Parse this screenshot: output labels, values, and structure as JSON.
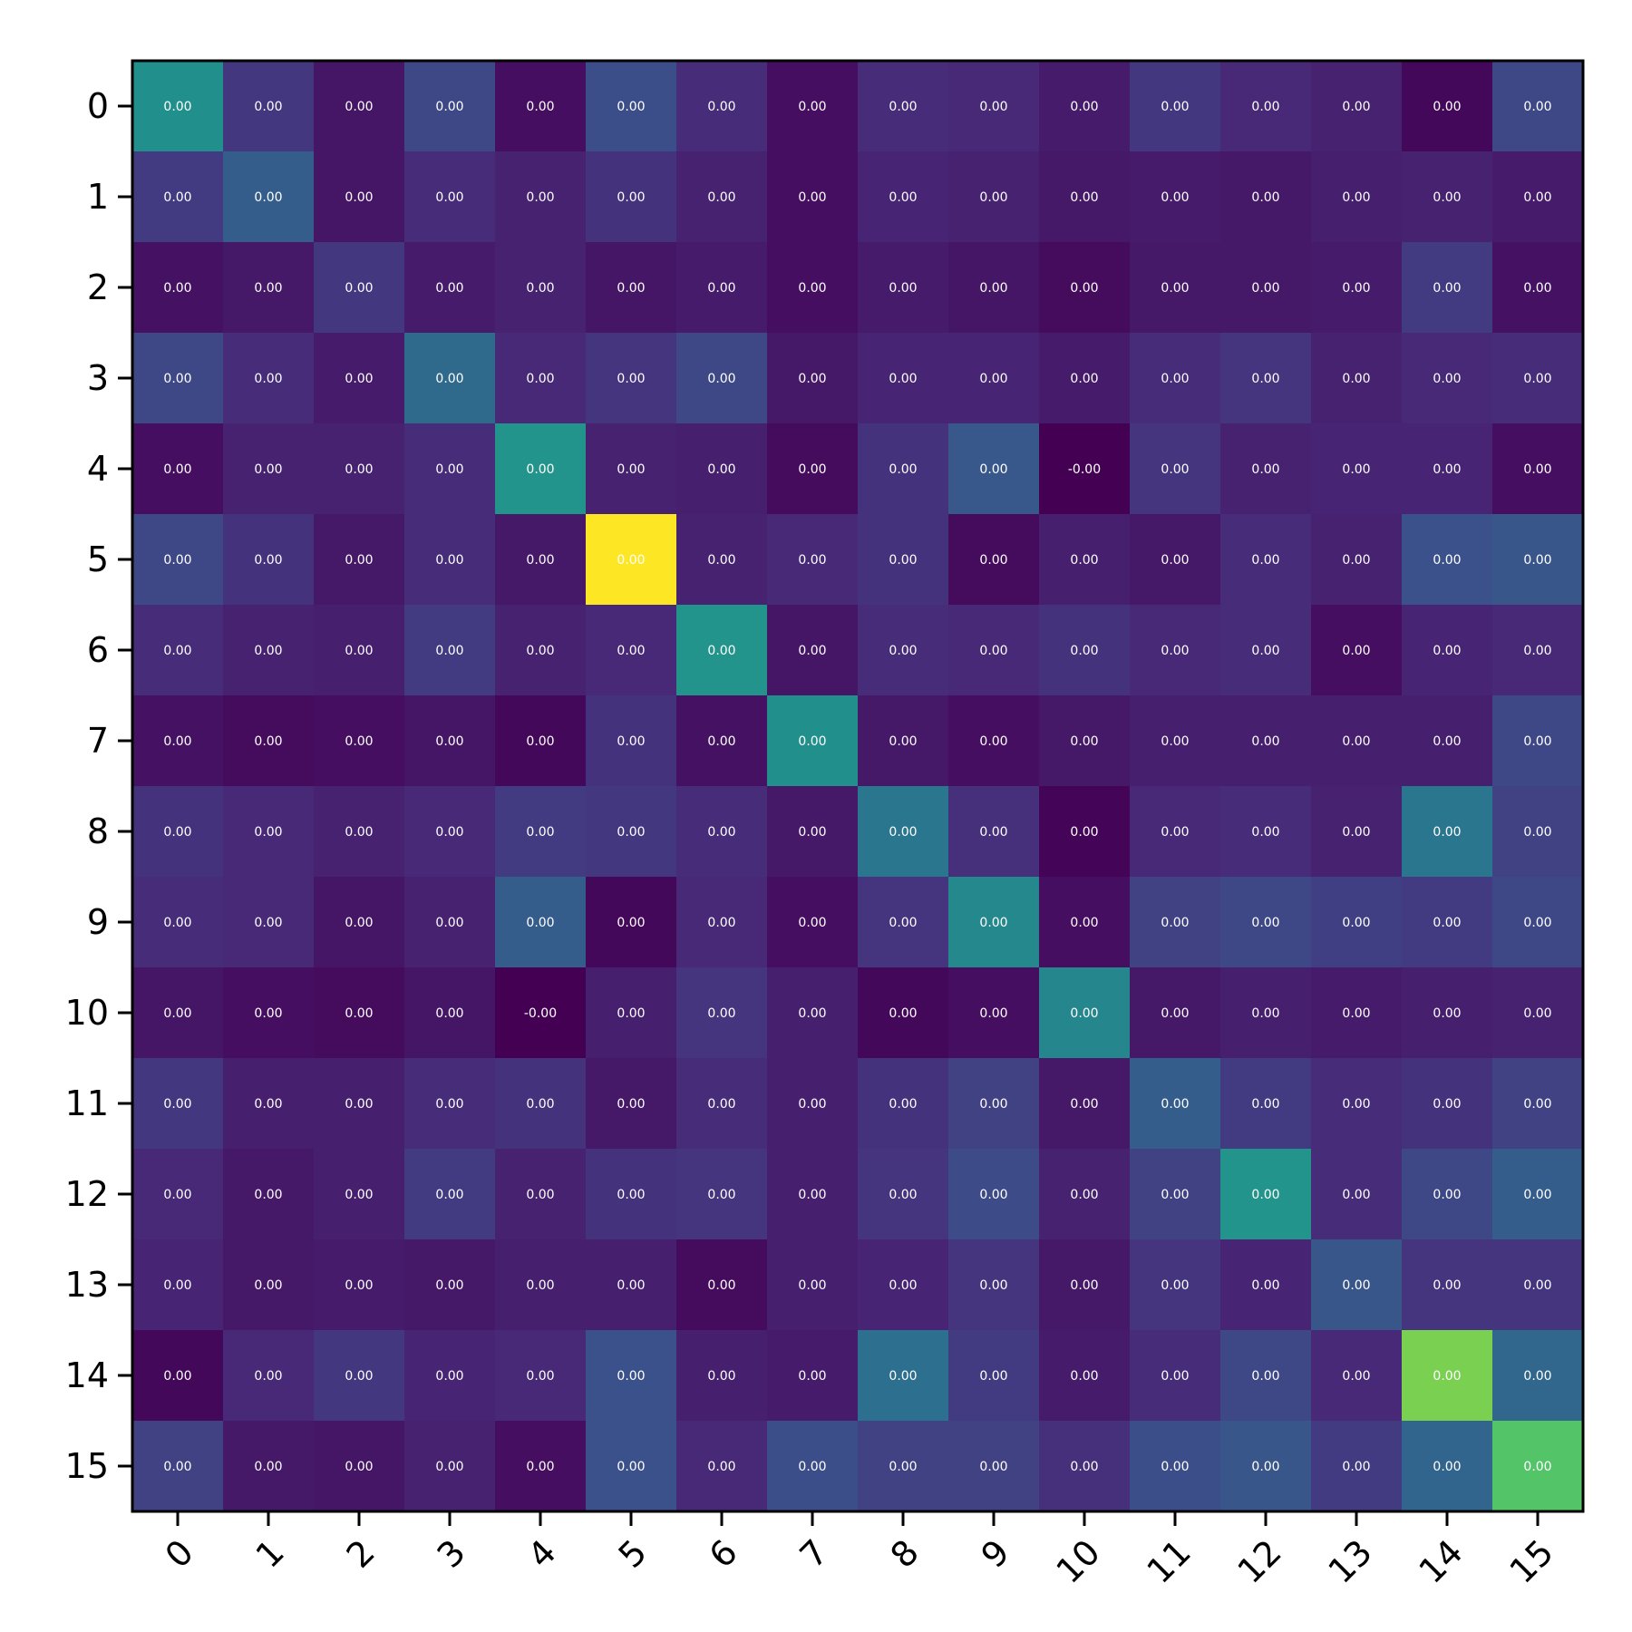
{
  "chart_data": {
    "type": "heatmap",
    "title": "",
    "xlabel": "",
    "ylabel": "",
    "x_tick_labels": [
      "0",
      "1",
      "2",
      "3",
      "4",
      "5",
      "6",
      "7",
      "8",
      "9",
      "10",
      "11",
      "12",
      "13",
      "14",
      "15"
    ],
    "y_tick_labels": [
      "0",
      "1",
      "2",
      "3",
      "4",
      "5",
      "6",
      "7",
      "8",
      "9",
      "10",
      "11",
      "12",
      "13",
      "14",
      "15"
    ],
    "colormap": "viridis",
    "grid": false,
    "x_tick_rotation_deg": 45,
    "color_level_note": "cell_color_levels are estimated relative color intensities (0-1) read from cell colors",
    "cell_color_levels": [
      [
        0.5,
        0.17,
        0.06,
        0.22,
        0.04,
        0.24,
        0.13,
        0.04,
        0.13,
        0.12,
        0.08,
        0.17,
        0.12,
        0.1,
        0.02,
        0.22
      ],
      [
        0.18,
        0.3,
        0.06,
        0.13,
        0.1,
        0.15,
        0.1,
        0.04,
        0.11,
        0.1,
        0.07,
        0.08,
        0.07,
        0.09,
        0.1,
        0.08
      ],
      [
        0.05,
        0.07,
        0.17,
        0.08,
        0.1,
        0.06,
        0.08,
        0.04,
        0.08,
        0.06,
        0.03,
        0.07,
        0.07,
        0.08,
        0.18,
        0.05
      ],
      [
        0.22,
        0.13,
        0.08,
        0.35,
        0.12,
        0.16,
        0.22,
        0.07,
        0.11,
        0.11,
        0.08,
        0.13,
        0.16,
        0.1,
        0.12,
        0.13
      ],
      [
        0.04,
        0.1,
        0.1,
        0.13,
        0.52,
        0.1,
        0.09,
        0.03,
        0.15,
        0.28,
        0.0,
        0.16,
        0.1,
        0.11,
        0.11,
        0.04
      ],
      [
        0.22,
        0.15,
        0.07,
        0.13,
        0.07,
        1.0,
        0.1,
        0.12,
        0.15,
        0.03,
        0.09,
        0.07,
        0.13,
        0.1,
        0.25,
        0.27
      ],
      [
        0.13,
        0.1,
        0.09,
        0.18,
        0.1,
        0.12,
        0.52,
        0.06,
        0.13,
        0.12,
        0.15,
        0.12,
        0.13,
        0.04,
        0.11,
        0.12
      ],
      [
        0.05,
        0.03,
        0.04,
        0.06,
        0.02,
        0.15,
        0.05,
        0.5,
        0.07,
        0.04,
        0.07,
        0.09,
        0.09,
        0.09,
        0.09,
        0.22
      ],
      [
        0.15,
        0.12,
        0.1,
        0.12,
        0.18,
        0.17,
        0.13,
        0.07,
        0.4,
        0.14,
        0.01,
        0.12,
        0.13,
        0.1,
        0.4,
        0.2
      ],
      [
        0.13,
        0.12,
        0.06,
        0.1,
        0.3,
        0.02,
        0.12,
        0.04,
        0.16,
        0.47,
        0.04,
        0.2,
        0.22,
        0.19,
        0.18,
        0.22
      ],
      [
        0.06,
        0.04,
        0.03,
        0.06,
        0.0,
        0.09,
        0.16,
        0.09,
        0.02,
        0.04,
        0.46,
        0.07,
        0.09,
        0.08,
        0.09,
        0.1
      ],
      [
        0.17,
        0.09,
        0.09,
        0.13,
        0.15,
        0.07,
        0.13,
        0.09,
        0.15,
        0.2,
        0.07,
        0.3,
        0.18,
        0.13,
        0.15,
        0.2
      ],
      [
        0.12,
        0.07,
        0.09,
        0.18,
        0.1,
        0.15,
        0.16,
        0.09,
        0.16,
        0.23,
        0.1,
        0.2,
        0.52,
        0.13,
        0.22,
        0.3
      ],
      [
        0.11,
        0.07,
        0.08,
        0.07,
        0.09,
        0.09,
        0.03,
        0.09,
        0.11,
        0.16,
        0.07,
        0.16,
        0.11,
        0.27,
        0.16,
        0.16
      ],
      [
        0.02,
        0.12,
        0.17,
        0.11,
        0.12,
        0.25,
        0.09,
        0.08,
        0.37,
        0.18,
        0.08,
        0.13,
        0.22,
        0.12,
        0.8,
        0.34
      ],
      [
        0.2,
        0.07,
        0.06,
        0.1,
        0.04,
        0.25,
        0.12,
        0.24,
        0.2,
        0.2,
        0.14,
        0.24,
        0.27,
        0.18,
        0.33,
        0.73
      ]
    ],
    "cell_labels": [
      [
        "0.00",
        "0.00",
        "0.00",
        "0.00",
        "0.00",
        "0.00",
        "0.00",
        "0.00",
        "0.00",
        "0.00",
        "0.00",
        "0.00",
        "0.00",
        "0.00",
        "0.00",
        "0.00"
      ],
      [
        "0.00",
        "0.00",
        "0.00",
        "0.00",
        "0.00",
        "0.00",
        "0.00",
        "0.00",
        "0.00",
        "0.00",
        "0.00",
        "0.00",
        "0.00",
        "0.00",
        "0.00",
        "0.00"
      ],
      [
        "0.00",
        "0.00",
        "0.00",
        "0.00",
        "0.00",
        "0.00",
        "0.00",
        "0.00",
        "0.00",
        "0.00",
        "0.00",
        "0.00",
        "0.00",
        "0.00",
        "0.00",
        "0.00"
      ],
      [
        "0.00",
        "0.00",
        "0.00",
        "0.00",
        "0.00",
        "0.00",
        "0.00",
        "0.00",
        "0.00",
        "0.00",
        "0.00",
        "0.00",
        "0.00",
        "0.00",
        "0.00",
        "0.00"
      ],
      [
        "0.00",
        "0.00",
        "0.00",
        "0.00",
        "0.00",
        "0.00",
        "0.00",
        "0.00",
        "0.00",
        "0.00",
        "-0.00",
        "0.00",
        "0.00",
        "0.00",
        "0.00",
        "0.00"
      ],
      [
        "0.00",
        "0.00",
        "0.00",
        "0.00",
        "0.00",
        "0.00",
        "0.00",
        "0.00",
        "0.00",
        "0.00",
        "0.00",
        "0.00",
        "0.00",
        "0.00",
        "0.00",
        "0.00"
      ],
      [
        "0.00",
        "0.00",
        "0.00",
        "0.00",
        "0.00",
        "0.00",
        "0.00",
        "0.00",
        "0.00",
        "0.00",
        "0.00",
        "0.00",
        "0.00",
        "0.00",
        "0.00",
        "0.00"
      ],
      [
        "0.00",
        "0.00",
        "0.00",
        "0.00",
        "0.00",
        "0.00",
        "0.00",
        "0.00",
        "0.00",
        "0.00",
        "0.00",
        "0.00",
        "0.00",
        "0.00",
        "0.00",
        "0.00"
      ],
      [
        "0.00",
        "0.00",
        "0.00",
        "0.00",
        "0.00",
        "0.00",
        "0.00",
        "0.00",
        "0.00",
        "0.00",
        "0.00",
        "0.00",
        "0.00",
        "0.00",
        "0.00",
        "0.00"
      ],
      [
        "0.00",
        "0.00",
        "0.00",
        "0.00",
        "0.00",
        "0.00",
        "0.00",
        "0.00",
        "0.00",
        "0.00",
        "0.00",
        "0.00",
        "0.00",
        "0.00",
        "0.00",
        "0.00"
      ],
      [
        "0.00",
        "0.00",
        "0.00",
        "0.00",
        "-0.00",
        "0.00",
        "0.00",
        "0.00",
        "0.00",
        "0.00",
        "0.00",
        "0.00",
        "0.00",
        "0.00",
        "0.00",
        "0.00"
      ],
      [
        "0.00",
        "0.00",
        "0.00",
        "0.00",
        "0.00",
        "0.00",
        "0.00",
        "0.00",
        "0.00",
        "0.00",
        "0.00",
        "0.00",
        "0.00",
        "0.00",
        "0.00",
        "0.00"
      ],
      [
        "0.00",
        "0.00",
        "0.00",
        "0.00",
        "0.00",
        "0.00",
        "0.00",
        "0.00",
        "0.00",
        "0.00",
        "0.00",
        "0.00",
        "0.00",
        "0.00",
        "0.00",
        "0.00"
      ],
      [
        "0.00",
        "0.00",
        "0.00",
        "0.00",
        "0.00",
        "0.00",
        "0.00",
        "0.00",
        "0.00",
        "0.00",
        "0.00",
        "0.00",
        "0.00",
        "0.00",
        "0.00",
        "0.00"
      ],
      [
        "0.00",
        "0.00",
        "0.00",
        "0.00",
        "0.00",
        "0.00",
        "0.00",
        "0.00",
        "0.00",
        "0.00",
        "0.00",
        "0.00",
        "0.00",
        "0.00",
        "0.00",
        "0.00"
      ],
      [
        "0.00",
        "0.00",
        "0.00",
        "0.00",
        "0.00",
        "0.00",
        "0.00",
        "0.00",
        "0.00",
        "0.00",
        "0.00",
        "0.00",
        "0.00",
        "0.00",
        "0.00",
        "0.00"
      ]
    ]
  }
}
